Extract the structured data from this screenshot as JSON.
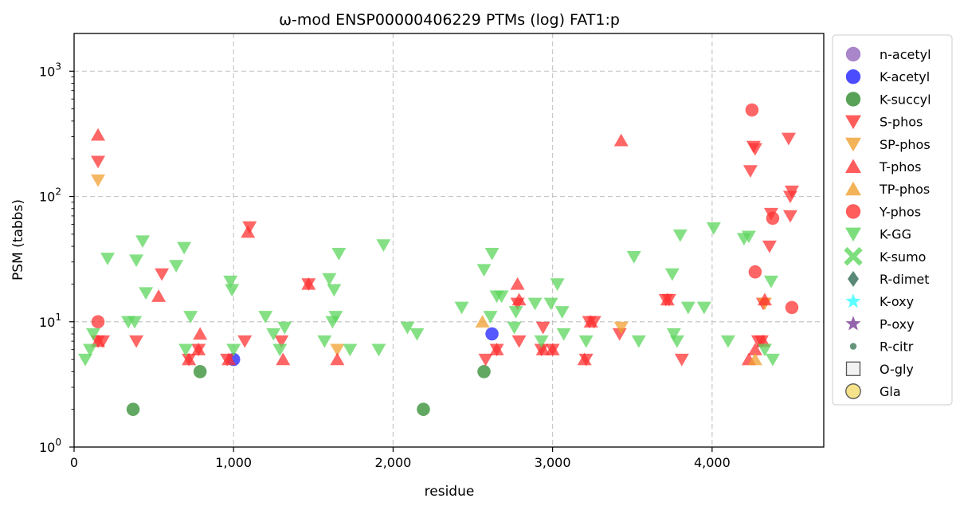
{
  "chart_data": {
    "type": "scatter",
    "title": "ω-mod ENSP00000406229 PTMs (log) FAT1:p",
    "xlabel": "residue",
    "ylabel": "PSM (tabbs)",
    "xlim": [
      0,
      4700
    ],
    "ylim": [
      1,
      2000
    ],
    "yscale": "log",
    "xticks": [
      {
        "value": 0,
        "label": "0"
      },
      {
        "value": 1000,
        "label": "1,000"
      },
      {
        "value": 2000,
        "label": "2,000"
      },
      {
        "value": 3000,
        "label": "3,000"
      },
      {
        "value": 4000,
        "label": "4,000"
      }
    ],
    "yticks": [
      {
        "value": 1,
        "base": "10",
        "exp": "0"
      },
      {
        "value": 10,
        "base": "10",
        "exp": "1"
      },
      {
        "value": 100,
        "base": "10",
        "exp": "2"
      },
      {
        "value": 1000,
        "base": "10",
        "exp": "3"
      }
    ],
    "grid": true,
    "legend_position": "outside-right",
    "series": [
      {
        "name": "n-acetyl",
        "marker": "circle",
        "color": "#9467bd",
        "points": []
      },
      {
        "name": "K-acetyl",
        "marker": "circle",
        "color": "#1f1fff",
        "points": [
          [
            1000,
            5
          ],
          [
            2620,
            8
          ]
        ]
      },
      {
        "name": "K-succyl",
        "marker": "circle",
        "color": "#2e8b2e",
        "points": [
          [
            370,
            2
          ],
          [
            790,
            4
          ],
          [
            2190,
            2
          ],
          [
            2570,
            4
          ]
        ]
      },
      {
        "name": "S-phos",
        "marker": "triangle-down",
        "color": "#ff3333",
        "points": [
          [
            150,
            190
          ],
          [
            150,
            7
          ],
          [
            180,
            7
          ],
          [
            390,
            7
          ],
          [
            550,
            24
          ],
          [
            720,
            5
          ],
          [
            780,
            6
          ],
          [
            960,
            5
          ],
          [
            1070,
            7
          ],
          [
            1100,
            57
          ],
          [
            1300,
            7
          ],
          [
            1470,
            20
          ],
          [
            2580,
            5
          ],
          [
            2650,
            6
          ],
          [
            2780,
            14
          ],
          [
            2790,
            7
          ],
          [
            2930,
            6
          ],
          [
            2940,
            9
          ],
          [
            3000,
            6
          ],
          [
            3210,
            5
          ],
          [
            3230,
            10
          ],
          [
            3260,
            10
          ],
          [
            3420,
            8
          ],
          [
            3710,
            15
          ],
          [
            3730,
            15
          ],
          [
            3810,
            5
          ],
          [
            4240,
            160
          ],
          [
            4260,
            250
          ],
          [
            4270,
            240
          ],
          [
            4290,
            7
          ],
          [
            4310,
            7
          ],
          [
            4320,
            14
          ],
          [
            4360,
            40
          ],
          [
            4370,
            73
          ],
          [
            4480,
            290
          ],
          [
            4490,
            70
          ],
          [
            4490,
            100
          ],
          [
            4500,
            110
          ]
        ]
      },
      {
        "name": "SP-phos",
        "marker": "triangle-down",
        "color": "#f0a030",
        "points": [
          [
            150,
            135
          ],
          [
            1650,
            6
          ],
          [
            3430,
            9
          ],
          [
            4330,
            14
          ]
        ]
      },
      {
        "name": "T-phos",
        "marker": "triangle-up",
        "color": "#ff3333",
        "points": [
          [
            150,
            310
          ],
          [
            150,
            7
          ],
          [
            530,
            16
          ],
          [
            720,
            5
          ],
          [
            780,
            6
          ],
          [
            790,
            8
          ],
          [
            970,
            5
          ],
          [
            1090,
            52
          ],
          [
            1310,
            5
          ],
          [
            1470,
            20
          ],
          [
            1650,
            5
          ],
          [
            2650,
            6
          ],
          [
            2780,
            20
          ],
          [
            2790,
            15
          ],
          [
            2940,
            6
          ],
          [
            3000,
            6
          ],
          [
            3200,
            5
          ],
          [
            3240,
            10
          ],
          [
            3430,
            280
          ],
          [
            3720,
            15
          ],
          [
            4270,
            6
          ],
          [
            4320,
            7
          ],
          [
            4330,
            15
          ],
          [
            4230,
            5
          ]
        ]
      },
      {
        "name": "TP-phos",
        "marker": "triangle-up",
        "color": "#f0a030",
        "points": [
          [
            2560,
            10
          ],
          [
            4270,
            5
          ]
        ]
      },
      {
        "name": "Y-phos",
        "marker": "circle",
        "color": "#ff3333",
        "points": [
          [
            150,
            10
          ],
          [
            4250,
            490
          ],
          [
            4270,
            25
          ],
          [
            4380,
            67
          ],
          [
            4500,
            13
          ]
        ]
      },
      {
        "name": "K-GG",
        "marker": "triangle-down",
        "color": "#5cd65c",
        "points": [
          [
            70,
            5
          ],
          [
            100,
            6
          ],
          [
            120,
            8
          ],
          [
            210,
            32
          ],
          [
            340,
            10
          ],
          [
            380,
            10
          ],
          [
            390,
            31
          ],
          [
            430,
            44
          ],
          [
            450,
            17
          ],
          [
            640,
            28
          ],
          [
            690,
            39
          ],
          [
            700,
            6
          ],
          [
            730,
            11
          ],
          [
            980,
            21
          ],
          [
            990,
            18
          ],
          [
            1000,
            6
          ],
          [
            1200,
            11
          ],
          [
            1250,
            8
          ],
          [
            1290,
            6
          ],
          [
            1320,
            9
          ],
          [
            1570,
            7
          ],
          [
            1600,
            22
          ],
          [
            1620,
            10
          ],
          [
            1630,
            18
          ],
          [
            1640,
            11
          ],
          [
            1660,
            35
          ],
          [
            1730,
            6
          ],
          [
            1910,
            6
          ],
          [
            1940,
            41
          ],
          [
            2090,
            9
          ],
          [
            2150,
            8
          ],
          [
            2430,
            13
          ],
          [
            2570,
            26
          ],
          [
            2610,
            11
          ],
          [
            2620,
            35
          ],
          [
            2650,
            16
          ],
          [
            2680,
            16
          ],
          [
            2760,
            9
          ],
          [
            2770,
            12
          ],
          [
            2890,
            14
          ],
          [
            2930,
            7
          ],
          [
            2990,
            14
          ],
          [
            3030,
            20
          ],
          [
            3060,
            12
          ],
          [
            3070,
            8
          ],
          [
            3210,
            7
          ],
          [
            3510,
            33
          ],
          [
            3540,
            7
          ],
          [
            3750,
            24
          ],
          [
            3760,
            8
          ],
          [
            3780,
            7
          ],
          [
            3800,
            49
          ],
          [
            3850,
            13
          ],
          [
            3950,
            13
          ],
          [
            4010,
            56
          ],
          [
            4100,
            7
          ],
          [
            4200,
            46
          ],
          [
            4230,
            48
          ],
          [
            4330,
            6
          ],
          [
            4370,
            21
          ],
          [
            4380,
            5
          ]
        ]
      }
    ],
    "legend_only_series": [
      {
        "name": "K-sumo",
        "marker": "x",
        "color": "#5cd65c"
      },
      {
        "name": "R-dimet",
        "marker": "diamond",
        "color": "#2f6b55"
      },
      {
        "name": "K-oxy",
        "marker": "star",
        "color": "#33ffff"
      },
      {
        "name": "P-oxy",
        "marker": "star",
        "color": "#7a3d99"
      },
      {
        "name": "R-citr",
        "marker": "small-circle",
        "color": "#3d7a5a"
      },
      {
        "name": "O-gly",
        "marker": "square-open",
        "color": "#cccccc"
      },
      {
        "name": "Gla",
        "marker": "circle-open",
        "color": "#f5e28a"
      }
    ]
  }
}
